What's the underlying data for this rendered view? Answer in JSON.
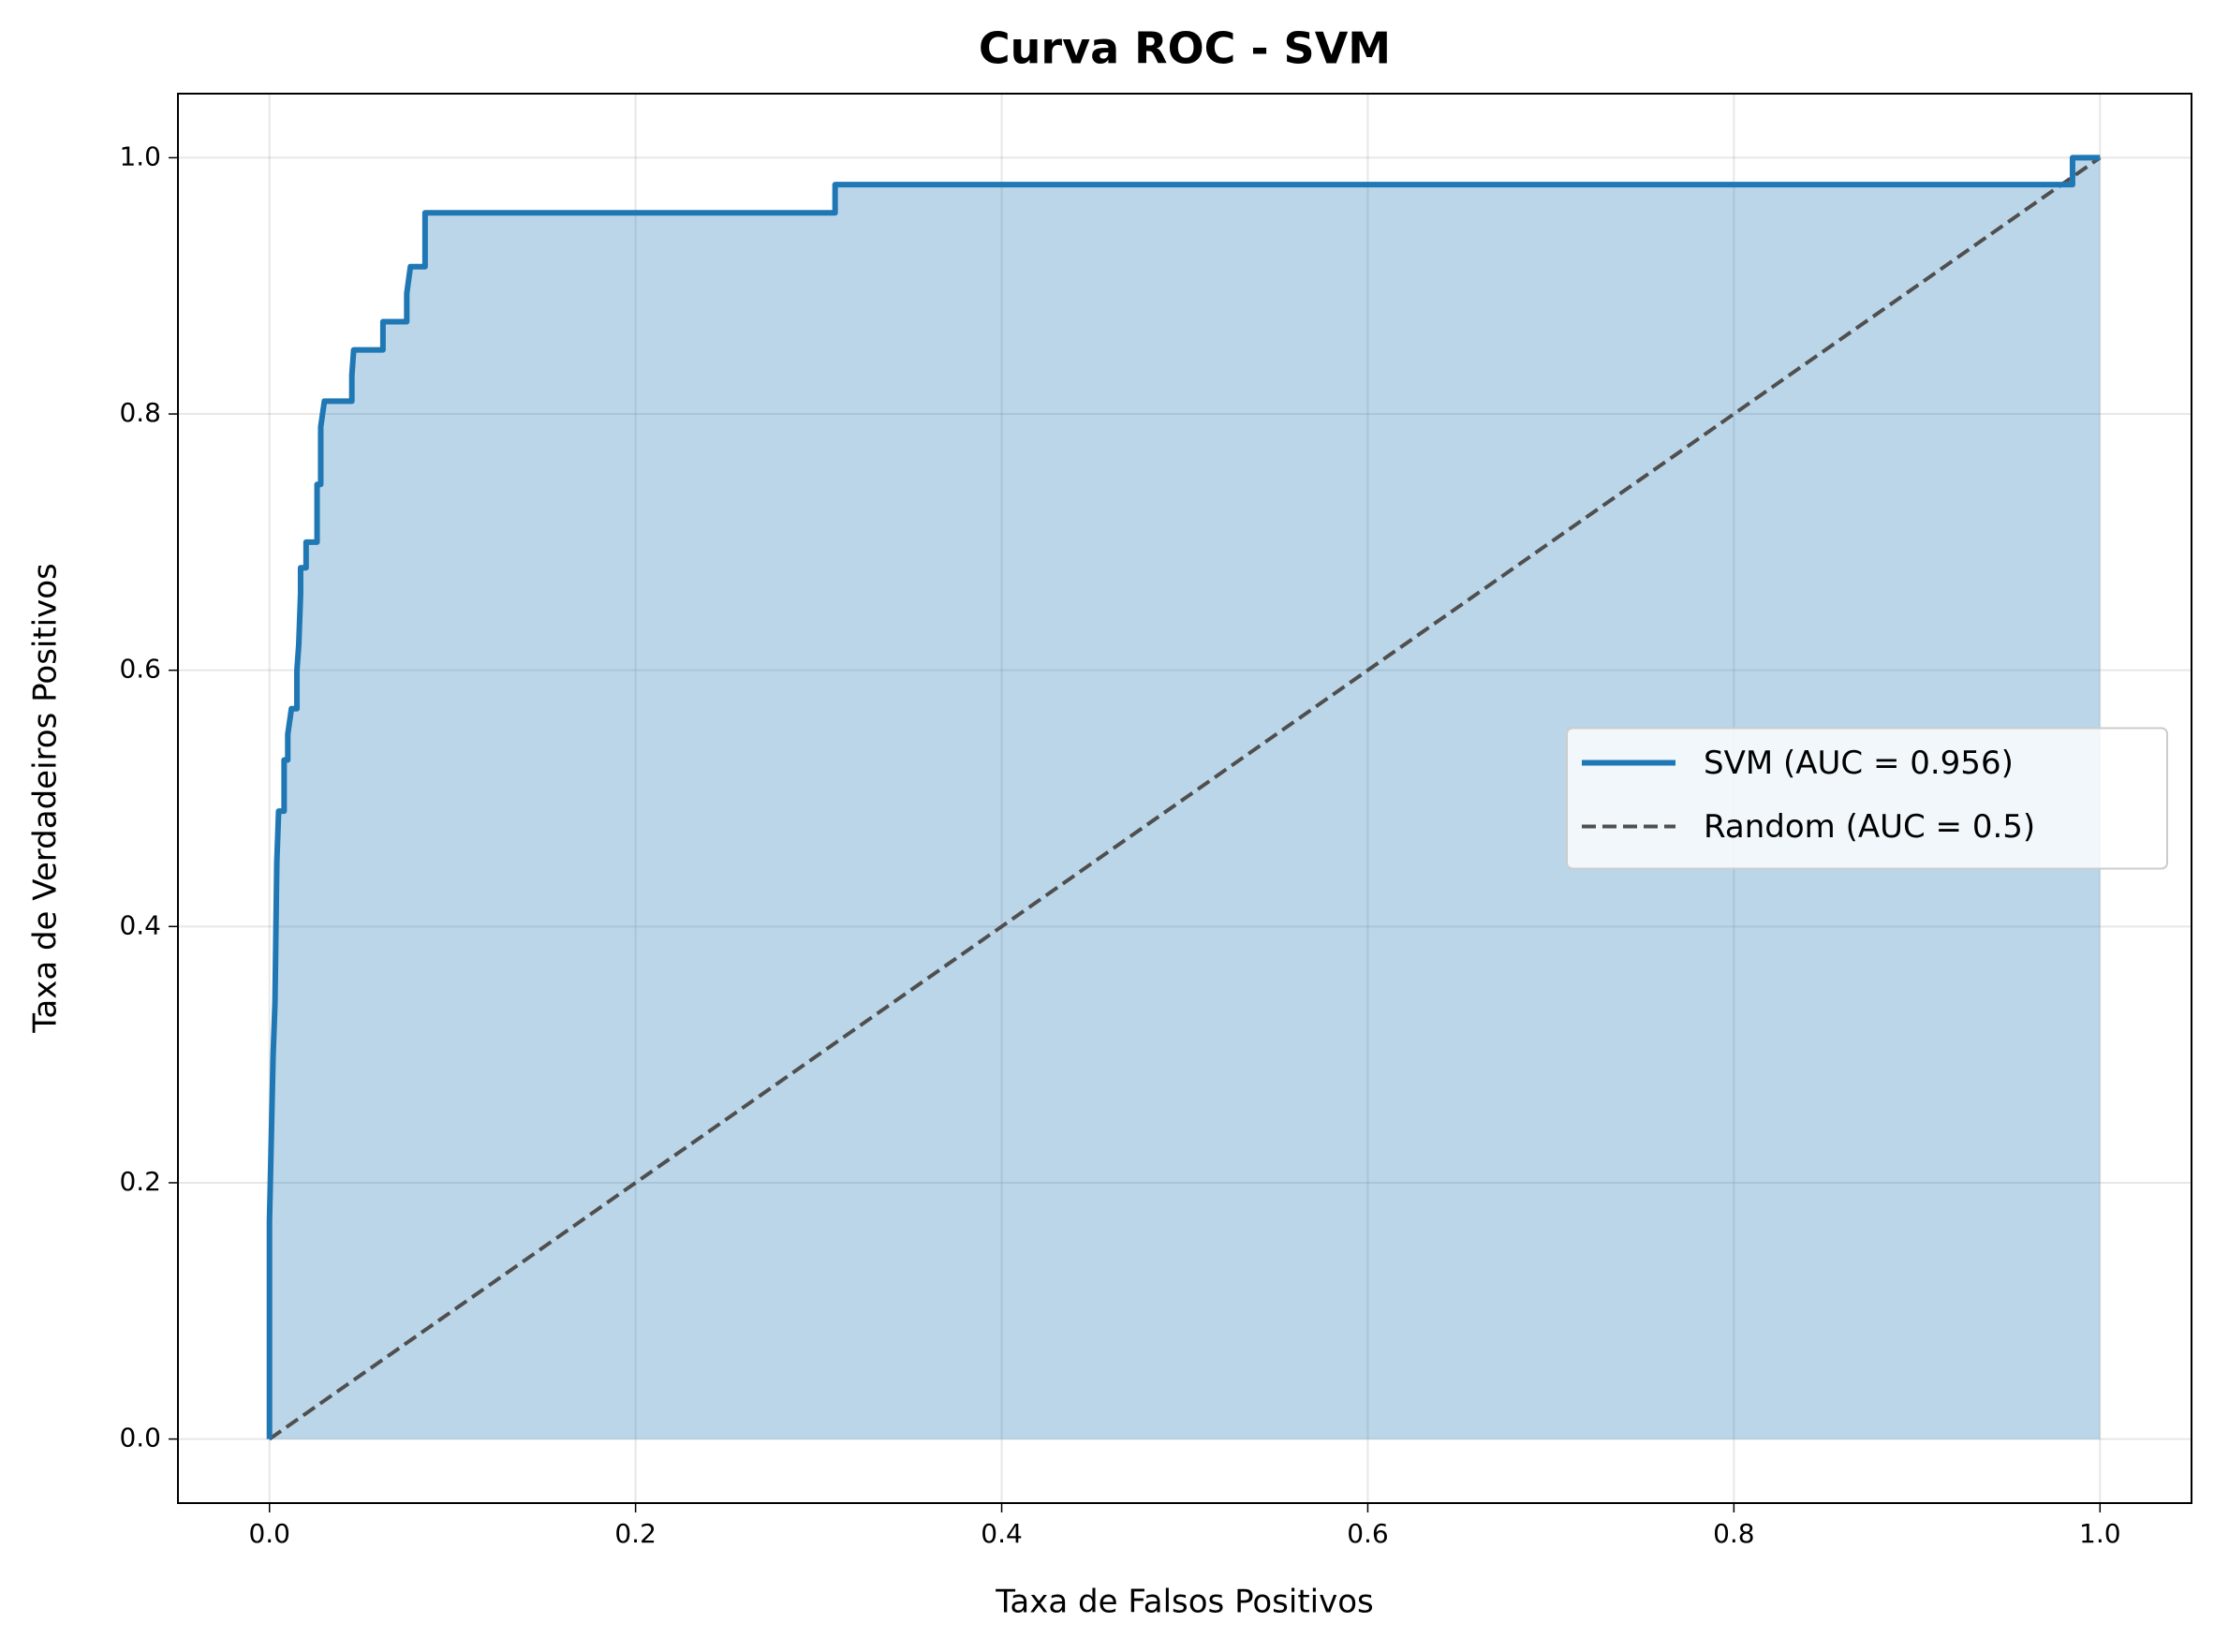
{
  "chart_data": {
    "type": "line",
    "title": "Curva ROC - SVM",
    "x_label": "Taxa de Falsos Positivos",
    "y_label": "Taxa de Verdadeiros Positivos",
    "xlim": [
      -0.05,
      1.05
    ],
    "ylim": [
      -0.05,
      1.05
    ],
    "xticks": [
      {
        "value": 0,
        "label": "0.0"
      },
      0.2,
      0.4,
      0.6,
      0.8,
      {
        "value": 1,
        "label": "1.0"
      }
    ],
    "yticks": [
      {
        "value": 0,
        "label": "0.0"
      },
      0.2,
      0.4,
      0.6,
      0.8,
      {
        "value": 1,
        "label": "1.0"
      }
    ],
    "grid": true,
    "legend": "right",
    "series": [
      {
        "name": "SVM (AUC = 0.956)",
        "color": "#1f77b4",
        "fill": true,
        "dashed": false,
        "x": [
          0,
          0,
          0.002,
          0.003,
          0.004,
          0.005,
          0.008,
          0.008,
          0.01,
          0.01,
          0.012,
          0.015,
          0.015,
          0.016,
          0.017,
          0.017,
          0.02,
          0.02,
          0.026,
          0.026,
          0.028,
          0.028,
          0.03,
          0.045,
          0.045,
          0.046,
          0.062,
          0.062,
          0.075,
          0.075,
          0.077,
          0.085,
          0.085,
          0.309,
          0.309,
          0.985,
          0.985,
          1.0
        ],
        "values": [
          0,
          0.17,
          0.3,
          0.34,
          0.45,
          0.49,
          0.49,
          0.53,
          0.53,
          0.55,
          0.57,
          0.57,
          0.6,
          0.62,
          0.66,
          0.68,
          0.68,
          0.7,
          0.7,
          0.745,
          0.745,
          0.79,
          0.81,
          0.81,
          0.83,
          0.85,
          0.85,
          0.872,
          0.872,
          0.894,
          0.915,
          0.915,
          0.957,
          0.957,
          0.979,
          0.979,
          1.0,
          1.0
        ]
      },
      {
        "name": "Random (AUC = 0.5)",
        "color": "#4f4f4f",
        "fill": false,
        "dashed": true,
        "x": [
          0,
          1
        ],
        "values": [
          0,
          1
        ]
      }
    ]
  }
}
